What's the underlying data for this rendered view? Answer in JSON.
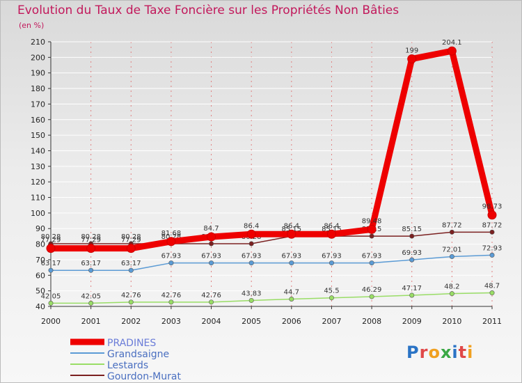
{
  "chart_data": {
    "type": "line",
    "title": "Evolution du Taux de Taxe Foncière sur les Propriétés Non Bâties",
    "ylabel": "(en %)",
    "xlabel": "",
    "ylim": [
      40,
      210
    ],
    "yticks": [
      40,
      50,
      60,
      70,
      80,
      90,
      100,
      110,
      120,
      130,
      140,
      150,
      160,
      170,
      180,
      190,
      200,
      210
    ],
    "categories": [
      "2000",
      "2001",
      "2002",
      "2003",
      "2004",
      "2005",
      "2006",
      "2007",
      "2008",
      "2009",
      "2010",
      "2011"
    ],
    "series": [
      {
        "name": "Gourdon-Murat",
        "color": "#7b2020",
        "values": [
          80.28,
          80.28,
          80.28,
          80.28,
          80.28,
          80.28,
          85.15,
          85.15,
          85.15,
          85.15,
          87.72,
          87.72
        ],
        "labels": [
          "80.28",
          "80.28",
          "80.28",
          "80.28",
          "80.28",
          "80.28",
          "85.15",
          "85.15",
          "85.15",
          "85.15",
          "87.72",
          "87.72"
        ]
      },
      {
        "name": "Grandsaigne",
        "color": "#5b9bd5",
        "values": [
          63.17,
          63.17,
          63.17,
          67.93,
          67.93,
          67.93,
          67.93,
          67.93,
          67.93,
          69.93,
          72.01,
          72.93
        ],
        "labels": [
          "63.17",
          "63.17",
          "63.17",
          "67.93",
          "67.93",
          "67.93",
          "67.93",
          "67.93",
          "67.93",
          "69.93",
          "72.01",
          "72.93"
        ]
      },
      {
        "name": "Lestards",
        "color": "#99dd66",
        "values": [
          42.05,
          42.05,
          42.76,
          42.76,
          42.76,
          43.83,
          44.7,
          45.5,
          46.29,
          47.17,
          48.2,
          48.7
        ],
        "labels": [
          "42.05",
          "42.05",
          "42.76",
          "42.76",
          "42.76",
          "43.83",
          "44.7",
          "45.5",
          "46.29",
          "47.17",
          "48.2",
          "48.7"
        ]
      },
      {
        "name": "PRADINES",
        "color": "#ee0000",
        "values": [
          77.29,
          77.29,
          77.29,
          81.68,
          84.7,
          86.4,
          86.4,
          86.4,
          89.48,
          199,
          204.1,
          98.73
        ],
        "labels": [
          "77.29",
          "77.29",
          "77.29",
          "81.68",
          "84.7",
          "86.4",
          "86.4",
          "86.4",
          "89.48",
          "199",
          "204.1",
          "98.73"
        ]
      }
    ],
    "legend_order": [
      "PRADINES",
      "Grandsaigne",
      "Lestards",
      "Gourdon-Murat"
    ],
    "legend": "bottom-left"
  },
  "logo": {
    "text": "Proxiti"
  }
}
